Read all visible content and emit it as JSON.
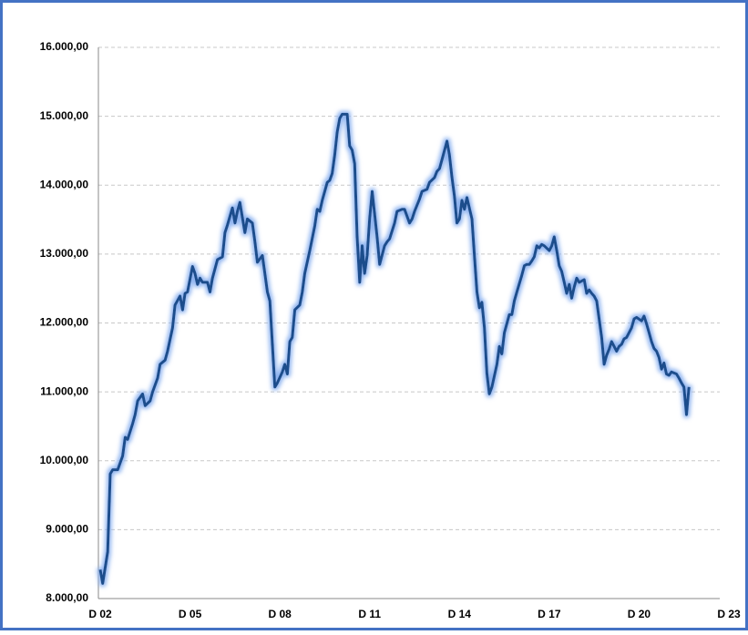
{
  "chart_data": {
    "type": "line",
    "x": [
      0,
      1,
      3,
      4,
      5,
      7,
      9,
      10,
      11,
      13,
      14,
      15,
      17,
      18,
      20,
      21,
      23,
      24,
      26,
      27,
      29,
      30,
      32,
      33,
      34,
      35,
      37,
      38,
      39,
      40,
      41,
      43,
      44,
      45,
      47,
      49,
      50,
      51,
      53,
      54,
      55,
      56,
      58,
      59,
      61,
      62,
      63,
      65,
      66,
      67,
      68,
      70,
      71,
      73,
      74,
      75,
      76,
      77,
      78,
      80,
      81,
      82,
      84,
      86,
      87,
      88,
      89,
      91,
      92,
      93,
      94,
      95,
      96,
      97,
      99,
      100,
      101,
      102,
      103,
      104,
      105,
      106,
      107,
      108,
      109,
      110,
      111,
      112,
      114,
      115,
      116,
      118,
      119,
      121,
      122,
      124,
      125,
      126,
      128,
      129,
      131,
      132,
      134,
      135,
      136,
      137,
      139,
      140,
      141,
      142,
      143,
      144,
      145,
      146,
      147,
      149,
      150,
      151,
      152,
      153,
      154,
      155,
      156,
      157,
      159,
      160,
      161,
      162,
      163,
      164,
      165,
      166,
      167,
      169,
      170,
      171,
      172,
      173,
      174,
      175,
      176,
      177,
      178,
      180,
      181,
      182,
      183,
      184,
      185,
      186,
      187,
      188,
      189,
      190,
      191,
      192,
      194,
      195,
      196,
      197,
      198,
      199,
      200,
      201,
      202,
      203,
      204,
      205,
      207,
      208,
      209,
      210,
      211,
      212,
      213,
      214,
      215,
      217,
      218,
      219,
      220,
      221,
      222,
      223,
      224,
      225,
      226,
      227,
      228,
      229,
      231,
      232,
      233,
      234,
      235,
      236
    ],
    "series": [
      {
        "color": "#1f4e8c",
        "values": [
          8420,
          8220,
          8680,
          9810,
          9870,
          9870,
          10070,
          10340,
          10310,
          10540,
          10670,
          10870,
          10970,
          10800,
          10870,
          11000,
          11200,
          11400,
          11460,
          11590,
          11930,
          12260,
          12390,
          12190,
          12430,
          12450,
          12820,
          12720,
          12560,
          12650,
          12590,
          12590,
          12450,
          12650,
          12920,
          12960,
          13310,
          13420,
          13670,
          13450,
          13620,
          13750,
          13310,
          13510,
          13450,
          13180,
          12880,
          12980,
          12720,
          12450,
          12320,
          11070,
          11130,
          11290,
          11400,
          11260,
          11730,
          11790,
          12190,
          12260,
          12450,
          12720,
          13050,
          13410,
          13650,
          13620,
          13780,
          14040,
          14070,
          14170,
          14440,
          14770,
          14970,
          15030,
          15030,
          14570,
          14510,
          14310,
          13250,
          12590,
          13120,
          12720,
          12980,
          13510,
          13910,
          13580,
          13250,
          12850,
          13120,
          13180,
          13220,
          13450,
          13620,
          13650,
          13650,
          13450,
          13510,
          13620,
          13800,
          13910,
          13940,
          14040,
          14110,
          14200,
          14240,
          14370,
          14640,
          14440,
          14110,
          13840,
          13450,
          13510,
          13780,
          13650,
          13820,
          13510,
          12980,
          12450,
          12220,
          12300,
          11930,
          11270,
          10970,
          11070,
          11400,
          11660,
          11550,
          11860,
          11990,
          12120,
          12120,
          12320,
          12450,
          12690,
          12830,
          12850,
          12850,
          12900,
          12960,
          13120,
          13090,
          13140,
          13120,
          13050,
          13120,
          13250,
          13050,
          12830,
          12750,
          12590,
          12430,
          12560,
          12360,
          12520,
          12650,
          12590,
          12630,
          12430,
          12480,
          12430,
          12390,
          12320,
          12060,
          11790,
          11400,
          11530,
          11620,
          11730,
          11590,
          11660,
          11690,
          11770,
          11790,
          11860,
          11930,
          12060,
          12080,
          12030,
          12100,
          11990,
          11860,
          11730,
          11630,
          11590,
          11500,
          11330,
          11420,
          11260,
          11240,
          11290,
          11260,
          11200,
          11130,
          11070,
          10670,
          11070
        ]
      }
    ],
    "xlim": [
      0,
      252
    ],
    "xticks": [
      {
        "value": 0,
        "label": "D 02"
      },
      {
        "value": 36,
        "label": "D 05"
      },
      {
        "value": 72,
        "label": "D 08"
      },
      {
        "value": 108,
        "label": "D 11"
      },
      {
        "value": 144,
        "label": "D 14"
      },
      {
        "value": 180,
        "label": "D 17"
      },
      {
        "value": 216,
        "label": "D 20"
      },
      {
        "value": 252,
        "label": "D 23"
      }
    ],
    "ylim": [
      8000,
      16000
    ],
    "yticks": [
      {
        "value": 8000,
        "label": "8.000,00"
      },
      {
        "value": 9000,
        "label": "9.000,00"
      },
      {
        "value": 10000,
        "label": "10.000,00"
      },
      {
        "value": 11000,
        "label": "11.000,00"
      },
      {
        "value": 12000,
        "label": "12.000,00"
      },
      {
        "value": 13000,
        "label": "13.000,00"
      },
      {
        "value": 14000,
        "label": "14.000,00"
      },
      {
        "value": 15000,
        "label": "15.000,00"
      },
      {
        "value": 16000,
        "label": "16.000,00"
      }
    ],
    "grid": true
  }
}
